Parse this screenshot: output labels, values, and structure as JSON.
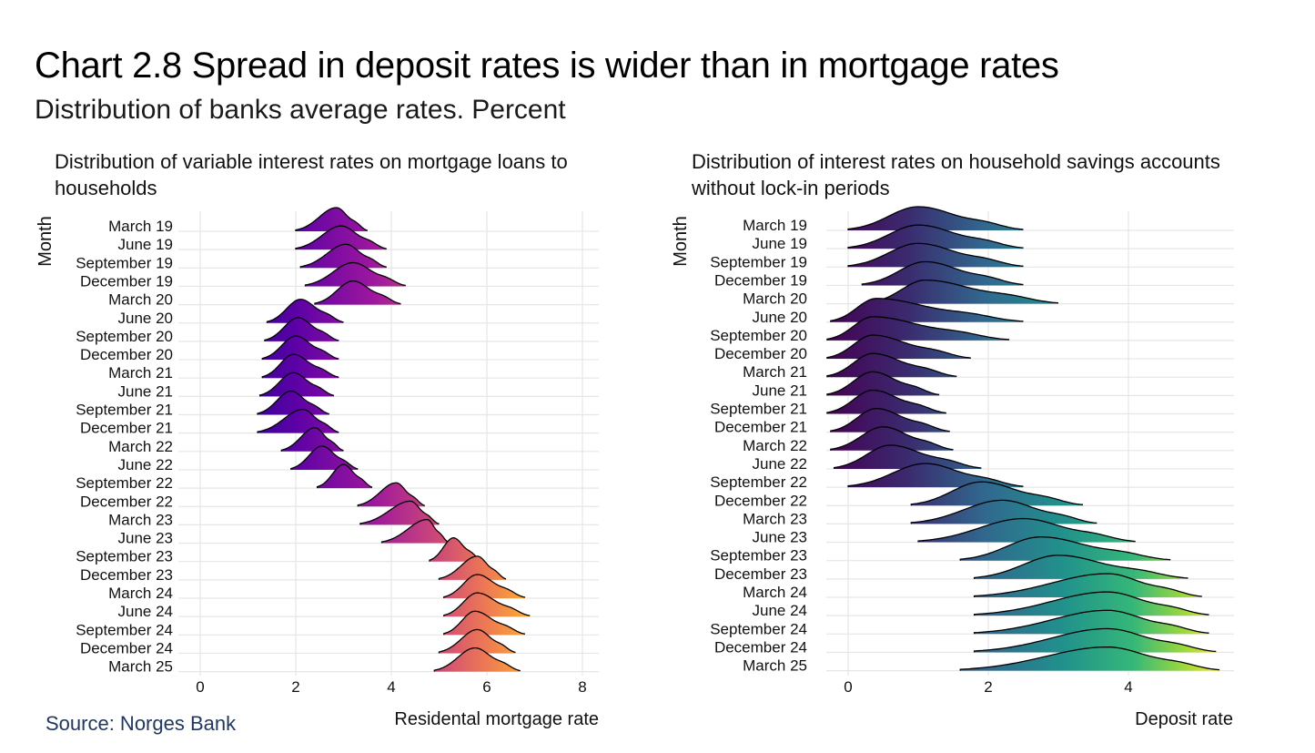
{
  "title": "Chart 2.8 Spread in deposit rates is wider than in mortgage rates",
  "subtitle": "Distribution of banks average rates. Percent",
  "source": "Source: Norges Bank",
  "colors": {
    "grid": "#e6e6e6",
    "mortgage_low": "#5c01a6",
    "mortgage_mid": "#cc4778",
    "mortgage_high": "#fdb42f",
    "deposit_low": "#3b2a6e",
    "deposit_mid": "#21918c",
    "deposit_high": "#a5db36"
  },
  "chart_data": [
    {
      "type": "ridgeline",
      "title": "Distribution of variable interest rates on mortgage loans to households",
      "xlabel": "Residental mortgage rate",
      "ylabel": "Month",
      "xlim": [
        -0.3,
        8.3
      ],
      "xticks": [
        0,
        2,
        4,
        6,
        8
      ],
      "categories": [
        "March 19",
        "June 19",
        "September 19",
        "December 19",
        "March 20",
        "June 20",
        "September 20",
        "December 20",
        "March 21",
        "June 21",
        "September 21",
        "December 21",
        "March 22",
        "June 22",
        "September 22",
        "December 22",
        "March 23",
        "June 23",
        "September 23",
        "December 23",
        "March 24",
        "June 24",
        "September 24",
        "December 24",
        "March 25"
      ],
      "peak": [
        2.85,
        2.95,
        3.05,
        3.2,
        3.2,
        2.1,
        2.05,
        2.0,
        1.95,
        1.95,
        1.9,
        2.15,
        2.4,
        2.55,
        3.0,
        4.1,
        4.4,
        4.75,
        5.3,
        5.8,
        5.8,
        5.8,
        5.75,
        5.8,
        5.75
      ],
      "min": [
        2.0,
        2.0,
        2.1,
        2.2,
        2.4,
        1.4,
        1.35,
        1.3,
        1.3,
        1.25,
        1.2,
        1.2,
        1.7,
        1.9,
        2.45,
        3.3,
        3.35,
        3.8,
        4.8,
        5.0,
        5.1,
        5.1,
        5.1,
        5.0,
        4.9
      ],
      "max": [
        3.5,
        3.9,
        3.9,
        4.3,
        4.2,
        3.0,
        2.9,
        2.9,
        2.9,
        2.8,
        2.7,
        2.9,
        3.0,
        3.3,
        3.6,
        4.7,
        5.0,
        5.2,
        5.9,
        6.4,
        6.8,
        6.9,
        6.8,
        6.6,
        6.7
      ]
    },
    {
      "type": "ridgeline",
      "title": "Distribution of interest rates on household savings accounts without lock-in periods",
      "xlabel": "Deposit rate",
      "ylabel": "Month",
      "xlim": [
        -0.3,
        5.4
      ],
      "xticks": [
        0,
        2,
        4
      ],
      "categories": [
        "March 19",
        "June 19",
        "September 19",
        "December 19",
        "March 20",
        "June 20",
        "September 20",
        "December 20",
        "March 21",
        "June 21",
        "September 21",
        "December 21",
        "March 22",
        "June 22",
        "September 22",
        "December 22",
        "March 23",
        "June 23",
        "September 23",
        "December 23",
        "March 24",
        "June 24",
        "September 24",
        "December 24",
        "March 25"
      ],
      "peak": [
        1.0,
        1.0,
        1.0,
        1.1,
        1.1,
        0.4,
        0.35,
        0.35,
        0.35,
        0.35,
        0.35,
        0.4,
        0.5,
        0.6,
        1.1,
        1.9,
        2.2,
        2.5,
        2.75,
        3.0,
        3.7,
        3.7,
        3.7,
        3.7,
        3.7
      ],
      "min": [
        0.0,
        0.0,
        0.0,
        0.2,
        0.3,
        -0.25,
        -0.3,
        -0.3,
        -0.3,
        -0.3,
        -0.3,
        -0.25,
        -0.25,
        -0.2,
        0.0,
        0.9,
        0.9,
        1.0,
        1.6,
        1.8,
        1.8,
        1.8,
        1.8,
        1.8,
        1.6
      ],
      "max": [
        2.5,
        2.5,
        2.5,
        2.5,
        3.0,
        2.5,
        2.3,
        1.75,
        1.55,
        1.3,
        1.4,
        1.45,
        1.5,
        1.9,
        2.5,
        3.35,
        3.55,
        4.1,
        4.6,
        4.85,
        5.05,
        5.15,
        5.15,
        5.25,
        5.3
      ]
    }
  ]
}
